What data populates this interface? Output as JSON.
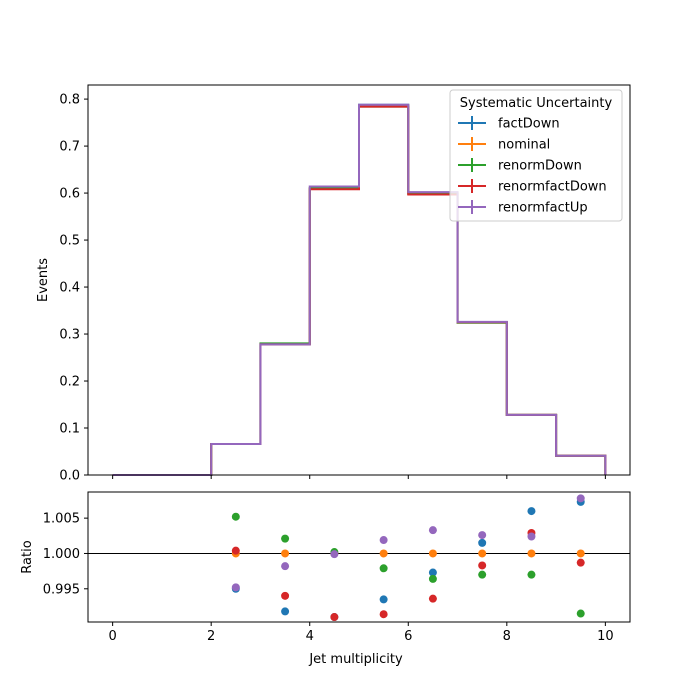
{
  "chart_data": {
    "type": "step-histogram-with-ratio",
    "colors": {
      "factDown": "#1f77b4",
      "nominal": "#ff7f0e",
      "renormDown": "#2ca02c",
      "renormfactDown": "#d62728",
      "renormfactUp": "#9467bd"
    },
    "bin_edges": [
      0,
      1,
      2,
      3,
      4,
      5,
      6,
      7,
      8,
      9,
      10
    ],
    "series": [
      {
        "name": "factDown",
        "values": [
          0,
          0,
          0.066,
          0.278,
          0.61,
          0.788,
          0.601,
          0.325,
          0.128,
          0.041
        ]
      },
      {
        "name": "nominal",
        "values": [
          0,
          0,
          0.066,
          0.279,
          0.61,
          0.785,
          0.6,
          0.325,
          0.128,
          0.041
        ]
      },
      {
        "name": "renormDown",
        "values": [
          0,
          0,
          0.066,
          0.28,
          0.61,
          0.784,
          0.598,
          0.324,
          0.128,
          0.041
        ]
      },
      {
        "name": "renormfactDown",
        "values": [
          0,
          0,
          0.066,
          0.278,
          0.608,
          0.784,
          0.597,
          0.325,
          0.128,
          0.041
        ]
      },
      {
        "name": "renormfactUp",
        "values": [
          0,
          0,
          0.066,
          0.278,
          0.614,
          0.788,
          0.602,
          0.326,
          0.128,
          0.041
        ]
      }
    ],
    "ratio": {
      "x": [
        2.5,
        3.5,
        4.5,
        5.5,
        6.5,
        7.5,
        8.5,
        9.5
      ],
      "series": [
        {
          "name": "factDown",
          "values": [
            0.995,
            0.9918,
            0.991,
            0.9935,
            0.9973,
            1.0015,
            1.006,
            1.0073
          ]
        },
        {
          "name": "nominal",
          "values": [
            1.0,
            1.0,
            1.0,
            1.0,
            1.0,
            1.0,
            1.0,
            1.0
          ]
        },
        {
          "name": "renormDown",
          "values": [
            1.0052,
            1.0021,
            1.0002,
            0.9979,
            0.9964,
            0.997,
            0.997,
            0.9915
          ]
        },
        {
          "name": "renormfactDown",
          "values": [
            1.0004,
            0.994,
            0.991,
            0.9914,
            0.9936,
            0.9983,
            1.0029,
            0.9987
          ]
        },
        {
          "name": "renormfactUp",
          "values": [
            0.9952,
            0.9982,
            0.9999,
            1.0019,
            1.0033,
            1.0026,
            1.0024,
            1.0078
          ]
        }
      ]
    },
    "top_ylabel": "Events",
    "bottom_ylabel": "Ratio",
    "xlabel": "Jet multiplicity",
    "xlim": [
      -0.5,
      10.5
    ],
    "top_ylim": [
      0,
      0.83
    ],
    "bottom_ylim": [
      0.9903,
      1.0087
    ],
    "x_ticks": [
      0,
      2,
      4,
      6,
      8,
      10
    ],
    "x_tick_labels": [
      "0",
      "2",
      "4",
      "6",
      "8",
      "10"
    ],
    "top_y_ticks": [
      0.0,
      0.1,
      0.2,
      0.3,
      0.4,
      0.5,
      0.6,
      0.7,
      0.8
    ],
    "top_y_tick_labels": [
      "0.0",
      "0.1",
      "0.2",
      "0.3",
      "0.4",
      "0.5",
      "0.6",
      "0.7",
      "0.8"
    ],
    "bottom_y_ticks": [
      0.995,
      1.0,
      1.005
    ],
    "bottom_y_tick_labels": [
      "0.995",
      "1.000",
      "1.005"
    ],
    "reference_line": 1.0,
    "legend": {
      "title": "Systematic Uncertainty",
      "placement": "top-right",
      "entries": [
        "factDown",
        "nominal",
        "renormDown",
        "renormfactDown",
        "renormfactUp"
      ]
    },
    "grid": false
  }
}
